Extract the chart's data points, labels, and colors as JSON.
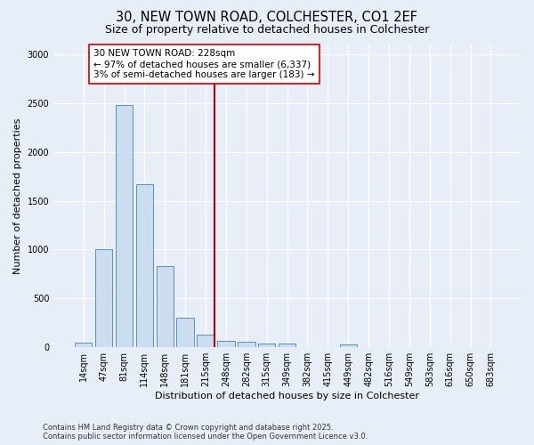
{
  "title_line1": "30, NEW TOWN ROAD, COLCHESTER, CO1 2EF",
  "title_line2": "Size of property relative to detached houses in Colchester",
  "xlabel": "Distribution of detached houses by size in Colchester",
  "ylabel": "Number of detached properties",
  "categories": [
    "14sqm",
    "47sqm",
    "81sqm",
    "114sqm",
    "148sqm",
    "181sqm",
    "215sqm",
    "248sqm",
    "282sqm",
    "315sqm",
    "349sqm",
    "382sqm",
    "415sqm",
    "449sqm",
    "482sqm",
    "516sqm",
    "549sqm",
    "583sqm",
    "616sqm",
    "650sqm",
    "683sqm"
  ],
  "values": [
    50,
    1005,
    2480,
    1670,
    830,
    305,
    130,
    65,
    60,
    40,
    40,
    0,
    0,
    30,
    0,
    0,
    0,
    0,
    0,
    0,
    0
  ],
  "bar_color": "#cdddf0",
  "bar_edge_color": "#5a8fc2",
  "vline_x_index": 6.45,
  "vline_color": "#aa0000",
  "annotation_text": "30 NEW TOWN ROAD: 228sqm\n← 97% of detached houses are smaller (6,337)\n3% of semi-detached houses are larger (183) →",
  "annotation_box_color": "#ffffff",
  "annotation_box_edge_color": "#cc0000",
  "ylim": [
    0,
    3100
  ],
  "yticks": [
    0,
    500,
    1000,
    1500,
    2000,
    2500,
    3000
  ],
  "bg_color": "#e8eef8",
  "grid_color": "#ffffff",
  "footer_line1": "Contains HM Land Registry data © Crown copyright and database right 2025.",
  "footer_line2": "Contains public sector information licensed under the Open Government Licence v3.0.",
  "title_fontsize": 10.5,
  "subtitle_fontsize": 9,
  "axis_label_fontsize": 8,
  "tick_fontsize": 7,
  "annotation_fontsize": 7.5,
  "footer_fontsize": 6
}
